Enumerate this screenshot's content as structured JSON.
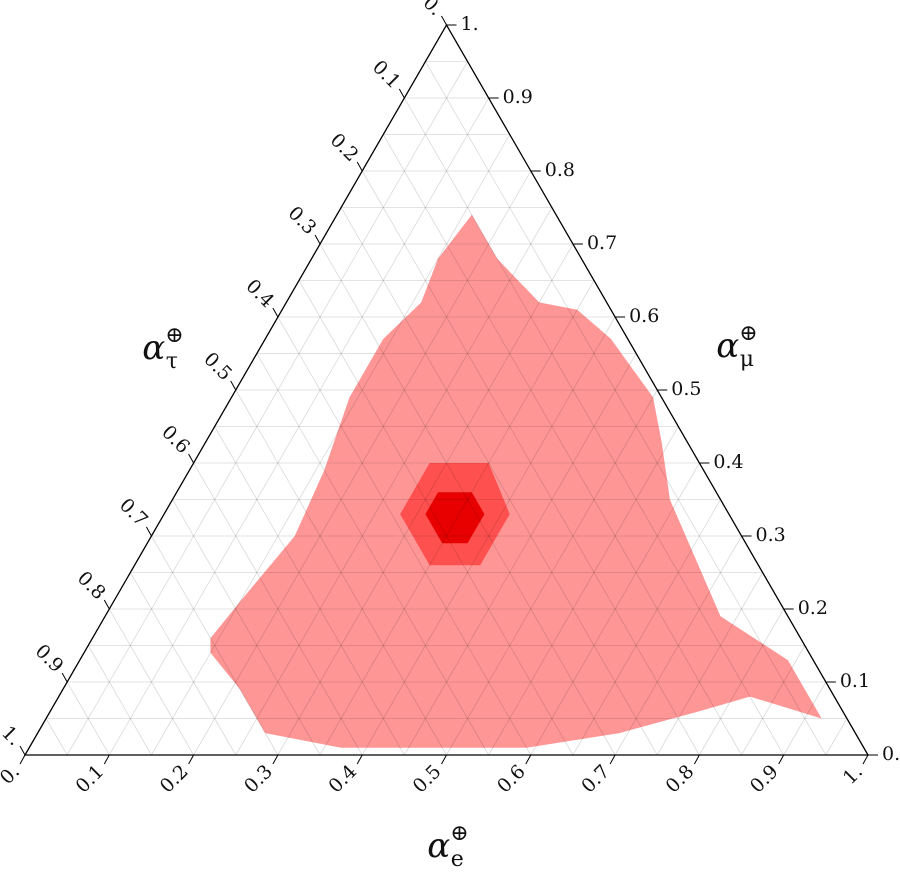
{
  "chart_data": {
    "type": "ternary",
    "axes": {
      "e": {
        "symbol": "α",
        "sub": "e",
        "sup": "⊕"
      },
      "mu": {
        "symbol": "α",
        "sub": "μ",
        "sup": "⊕"
      },
      "tau": {
        "symbol": "α",
        "sub": "τ",
        "sup": "⊕"
      }
    },
    "eticks": [
      {
        "value": 0,
        "label": "0."
      },
      0.1,
      0.2,
      0.3,
      0.4,
      0.5,
      0.6,
      0.7,
      0.8,
      0.9,
      {
        "value": 1,
        "label": "1."
      }
    ],
    "muticks": [
      {
        "value": 0,
        "label": "0."
      },
      0.1,
      0.2,
      0.3,
      0.4,
      0.5,
      0.6,
      0.7,
      0.8,
      0.9,
      {
        "value": 1,
        "label": "1."
      }
    ],
    "tauticks": [
      {
        "value": 0,
        "label": "0."
      },
      0.1,
      0.2,
      0.3,
      0.4,
      0.5,
      0.6,
      0.7,
      0.8,
      0.9,
      {
        "value": 1,
        "label": "1."
      }
    ],
    "gridlines": [
      0.05,
      0.1,
      0.15,
      0.2,
      0.25,
      0.3,
      0.35,
      0.4,
      0.45,
      0.5,
      0.55,
      0.6,
      0.65,
      0.7,
      0.75,
      0.8,
      0.85,
      0.9,
      0.95
    ],
    "grid": true,
    "regions": [
      {
        "color": "#ff9696",
        "e": [
          0.14,
          0.15,
          0.17,
          0.16,
          0.14,
          0.14,
          0.16,
          0.15,
          0.16,
          0.22,
          0.3,
          0.35,
          0.41,
          0.5,
          0.54,
          0.59,
          0.66,
          0.73,
          0.84,
          0.92,
          0.82,
          0.77,
          0.69,
          0.59,
          0.5,
          0.37,
          0.27,
          0.21,
          0.15
        ],
        "mu": [
          0.16,
          0.21,
          0.3,
          0.39,
          0.49,
          0.57,
          0.62,
          0.68,
          0.74,
          0.68,
          0.62,
          0.61,
          0.57,
          0.49,
          0.43,
          0.35,
          0.27,
          0.19,
          0.13,
          0.05,
          0.08,
          0.06,
          0.03,
          0.01,
          0.01,
          0.01,
          0.03,
          0.09,
          0.14
        ]
      },
      {
        "color": "#ff5050",
        "e": [
          0.41,
          0.35,
          0.28,
          0.28,
          0.35,
          0.41
        ],
        "mu": [
          0.33,
          0.4,
          0.4,
          0.33,
          0.26,
          0.26
        ]
      },
      {
        "color": "#e80000",
        "e": [
          0.38,
          0.35,
          0.31,
          0.31,
          0.35,
          0.38
        ],
        "mu": [
          0.33,
          0.36,
          0.36,
          0.33,
          0.29,
          0.29
        ]
      }
    ]
  }
}
